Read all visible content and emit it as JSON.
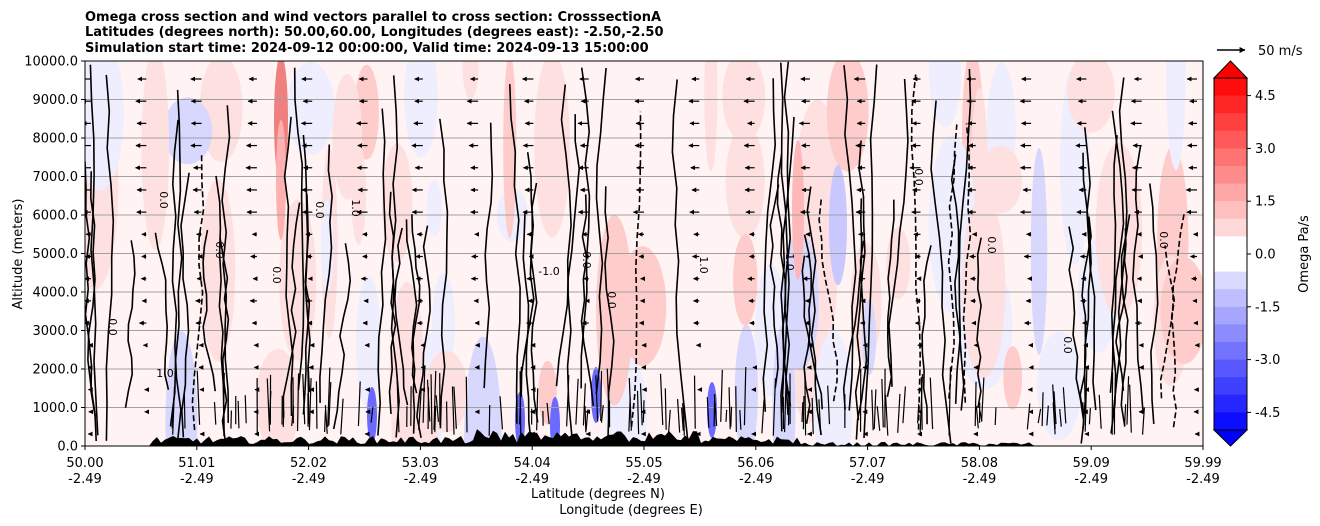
{
  "chart_data": {
    "type": "contour",
    "title_lines": [
      "Omega cross section and wind vectors parallel to cross section: CrosssectionA",
      "Latitudes (degrees north): 50.00,60.00, Longitudes (degrees east): -2.50,-2.50",
      "Simulation start time: 2024-09-12 00:00:00, Valid time: 2024-09-13 15:00:00"
    ],
    "ylabel": "Altitude (meters)",
    "xlabel_lines": [
      "Latitude (degrees N)",
      "Longitude (degrees E)"
    ],
    "ylim": [
      0,
      10000
    ],
    "xlim": [
      50.0,
      59.99
    ],
    "yticks": [
      "0.0",
      "1000.0",
      "2000.0",
      "3000.0",
      "4000.0",
      "5000.0",
      "6000.0",
      "7000.0",
      "8000.0",
      "9000.0",
      "10000.0"
    ],
    "xticks": [
      {
        "lat": "50.00",
        "lon": "-2.49"
      },
      {
        "lat": "51.01",
        "lon": "-2.49"
      },
      {
        "lat": "52.02",
        "lon": "-2.49"
      },
      {
        "lat": "53.03",
        "lon": "-2.49"
      },
      {
        "lat": "54.04",
        "lon": "-2.49"
      },
      {
        "lat": "55.05",
        "lon": "-2.49"
      },
      {
        "lat": "56.06",
        "lon": "-2.49"
      },
      {
        "lat": "57.07",
        "lon": "-2.49"
      },
      {
        "lat": "58.08",
        "lon": "-2.49"
      },
      {
        "lat": "59.09",
        "lon": "-2.49"
      },
      {
        "lat": "59.99",
        "lon": "-2.49"
      }
    ],
    "colorbar": {
      "label": "Omega Pa/s",
      "range": [
        -5.0,
        5.0
      ],
      "ticks": [
        "4.5",
        "3.0",
        "1.5",
        "0.0",
        "-1.5",
        "-3.0",
        "-4.5"
      ],
      "tick_values": [
        4.5,
        3.0,
        1.5,
        0.0,
        -1.5,
        -3.0,
        -4.5
      ]
    },
    "quiver_key": "50 m/s",
    "contour_levels": [
      -1.0,
      0.0,
      1.0
    ],
    "contour_labels": [
      "0.0",
      "0.0",
      "0.0",
      "0.0",
      "0.0",
      "1.0",
      "-1.0",
      "0.0",
      "0.0",
      "1.0",
      "-1.0",
      "0.0",
      "0.0",
      "0.0",
      "0.0",
      "1.0"
    ],
    "colors": {
      "positive": "#ff0000",
      "negative": "#0000ff",
      "neutral": "#ffffff"
    }
  }
}
